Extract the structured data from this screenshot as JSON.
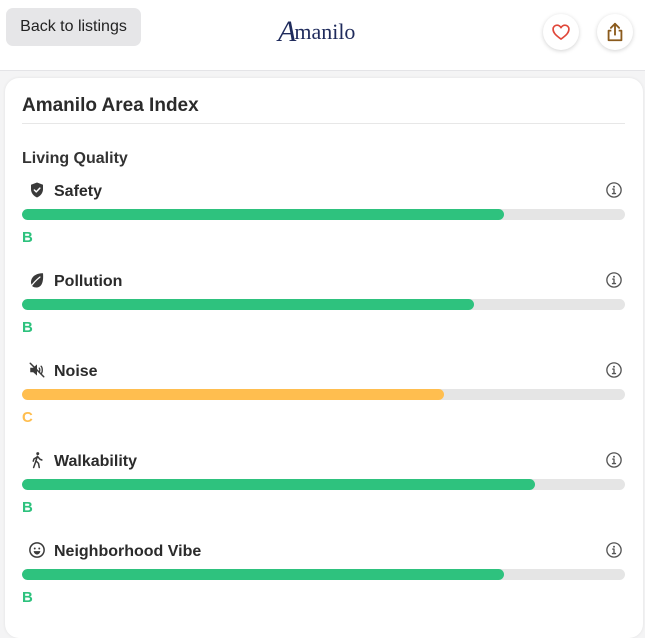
{
  "header": {
    "back_label": "Back to listings",
    "logo_initial": "A",
    "logo_rest": "manilo"
  },
  "card": {
    "title": "Amanilo Area Index",
    "section_title": "Living Quality"
  },
  "colors": {
    "good": "#2ec27e",
    "medium": "#ffbe4f",
    "track": "#e5e5e5",
    "heart": "#e0473a",
    "share": "#8a5a1c"
  },
  "metrics": [
    {
      "label": "Safety",
      "icon": "shield-icon",
      "grade": "B",
      "level": 0.8,
      "color": "#2ec27e"
    },
    {
      "label": "Pollution",
      "icon": "leaf-icon",
      "grade": "B",
      "level": 0.75,
      "color": "#2ec27e"
    },
    {
      "label": "Noise",
      "icon": "speaker-muted-icon",
      "grade": "C",
      "level": 0.7,
      "color": "#ffbe4f"
    },
    {
      "label": "Walkability",
      "icon": "walking-person-icon",
      "grade": "B",
      "level": 0.85,
      "color": "#2ec27e"
    },
    {
      "label": "Neighborhood Vibe",
      "icon": "smiley-icon",
      "grade": "B",
      "level": 0.8,
      "color": "#2ec27e"
    }
  ]
}
